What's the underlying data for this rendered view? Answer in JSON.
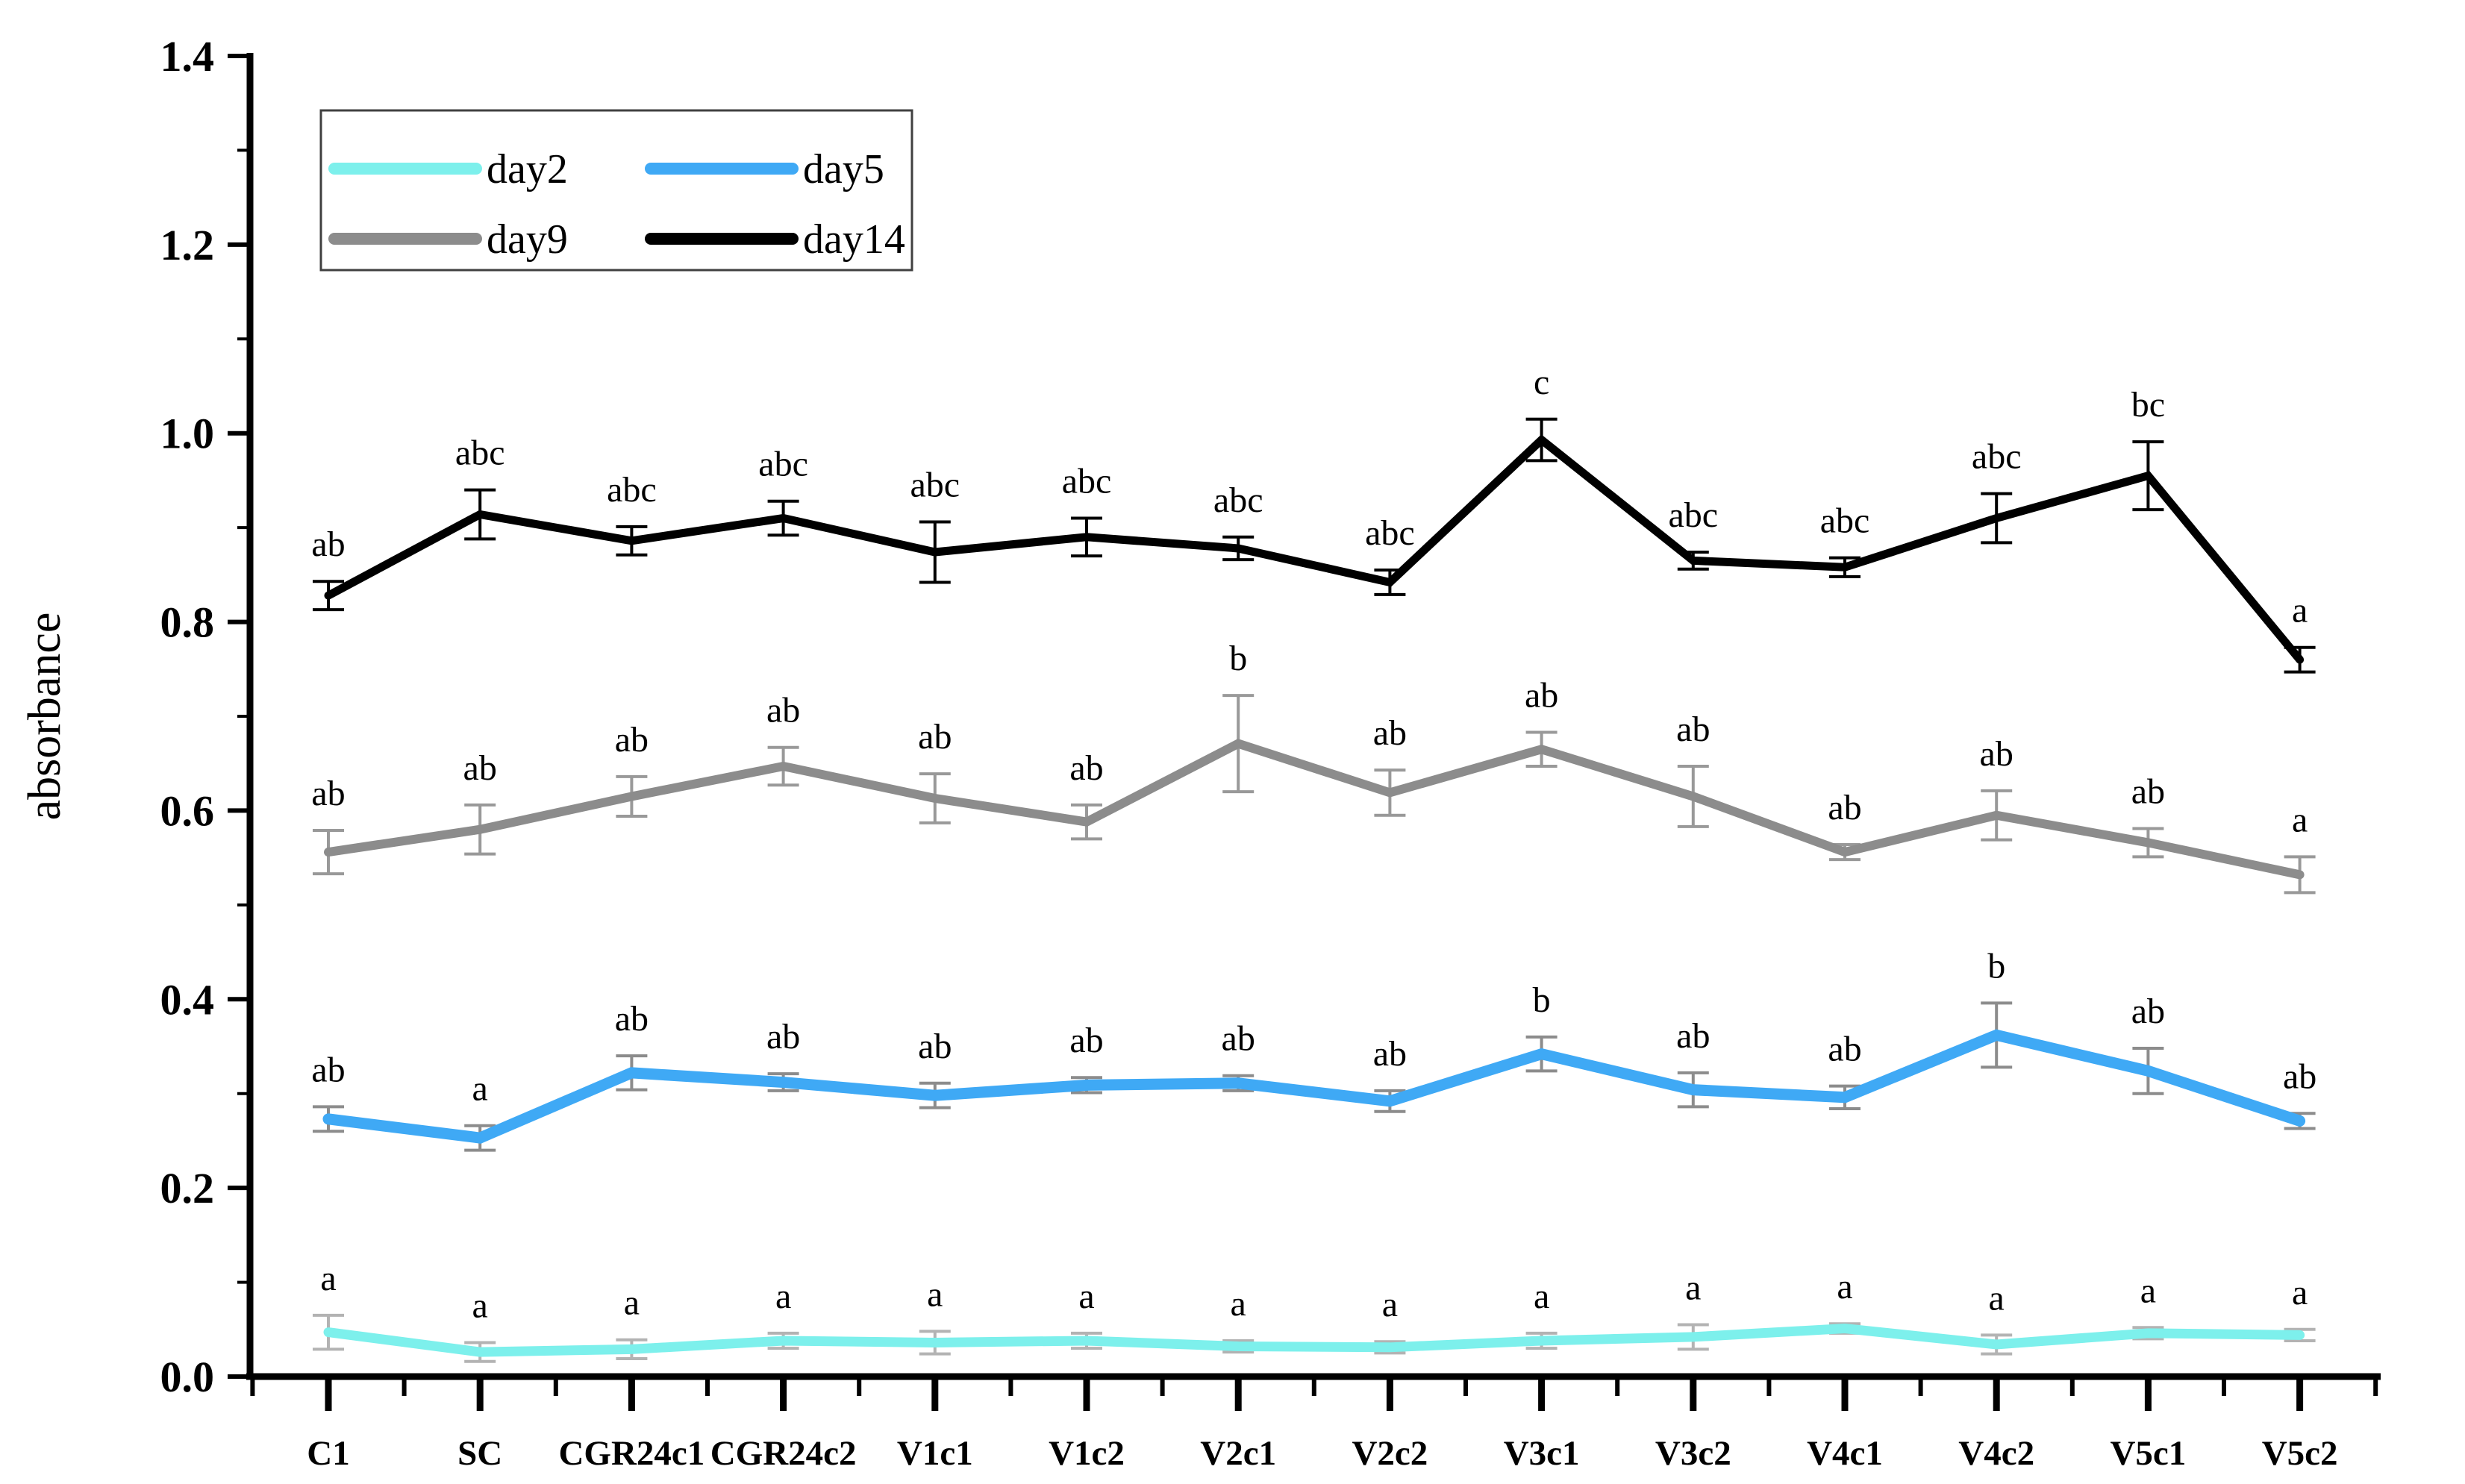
{
  "chart_data": {
    "type": "line",
    "title": "",
    "xlabel": "",
    "ylabel": "absorbance",
    "ylim": [
      0.0,
      1.4
    ],
    "ytick_step": 0.2,
    "ytick_minor_step": 0.1,
    "ytick_labels": [
      "0.0",
      "0.2",
      "0.4",
      "0.6",
      "0.8",
      "1.0",
      "1.2",
      "1.4"
    ],
    "grid": false,
    "legend_position": "top-left",
    "categories": [
      "C1",
      "SC",
      "CGR24c1",
      "CGR24c2",
      "V1c1",
      "V1c2",
      "V2c1",
      "V2c2",
      "V3c1",
      "V3c2",
      "V4c1",
      "V4c2",
      "V5c1",
      "V5c2"
    ],
    "series": [
      {
        "name": "day2",
        "color": "#7df0ec",
        "error_color": "#b3b3b3",
        "values": [
          0.047,
          0.026,
          0.029,
          0.038,
          0.036,
          0.038,
          0.032,
          0.031,
          0.038,
          0.042,
          0.051,
          0.034,
          0.046,
          0.044
        ],
        "errors": [
          0.018,
          0.01,
          0.01,
          0.008,
          0.012,
          0.008,
          0.006,
          0.006,
          0.008,
          0.013,
          0.005,
          0.01,
          0.006,
          0.006
        ],
        "letters": [
          "a",
          "a",
          "a",
          "a",
          "a",
          "a",
          "a",
          "a",
          "a",
          "a",
          "a",
          "a",
          "a",
          "a"
        ]
      },
      {
        "name": "day5",
        "color": "#3fa9f5",
        "error_color": "#8c8c8c",
        "values": [
          0.273,
          0.253,
          0.322,
          0.312,
          0.298,
          0.309,
          0.311,
          0.292,
          0.342,
          0.304,
          0.296,
          0.362,
          0.324,
          0.271
        ],
        "errors": [
          0.013,
          0.013,
          0.018,
          0.009,
          0.013,
          0.008,
          0.008,
          0.011,
          0.018,
          0.018,
          0.012,
          0.034,
          0.024,
          0.008
        ],
        "letters": [
          "ab",
          "a",
          "ab",
          "ab",
          "ab",
          "ab",
          "ab",
          "ab",
          "b",
          "ab",
          "ab",
          "b",
          "ab",
          "ab"
        ]
      },
      {
        "name": "day9",
        "color": "#8c8c8c",
        "error_color": "#999999",
        "values": [
          0.556,
          0.58,
          0.615,
          0.647,
          0.613,
          0.588,
          0.671,
          0.619,
          0.665,
          0.615,
          0.556,
          0.595,
          0.566,
          0.532
        ],
        "errors": [
          0.023,
          0.026,
          0.021,
          0.02,
          0.026,
          0.018,
          0.051,
          0.024,
          0.018,
          0.032,
          0.008,
          0.026,
          0.015,
          0.019
        ],
        "letters": [
          "ab",
          "ab",
          "ab",
          "ab",
          "ab",
          "ab",
          "b",
          "ab",
          "ab",
          "ab",
          "ab",
          "ab",
          "ab",
          "a"
        ]
      },
      {
        "name": "day14",
        "color": "#000000",
        "error_color": "#000000",
        "values": [
          0.828,
          0.914,
          0.886,
          0.91,
          0.874,
          0.89,
          0.878,
          0.842,
          0.993,
          0.865,
          0.858,
          0.91,
          0.955,
          0.76
        ],
        "errors": [
          0.015,
          0.026,
          0.015,
          0.018,
          0.032,
          0.02,
          0.012,
          0.013,
          0.022,
          0.009,
          0.01,
          0.026,
          0.036,
          0.013
        ],
        "letters": [
          "ab",
          "abc",
          "abc",
          "abc",
          "abc",
          "abc",
          "abc",
          "abc",
          "c",
          "abc",
          "abc",
          "abc",
          "bc",
          "a"
        ]
      }
    ],
    "legend_entries": [
      "day2",
      "day5",
      "day9",
      "day14"
    ]
  }
}
